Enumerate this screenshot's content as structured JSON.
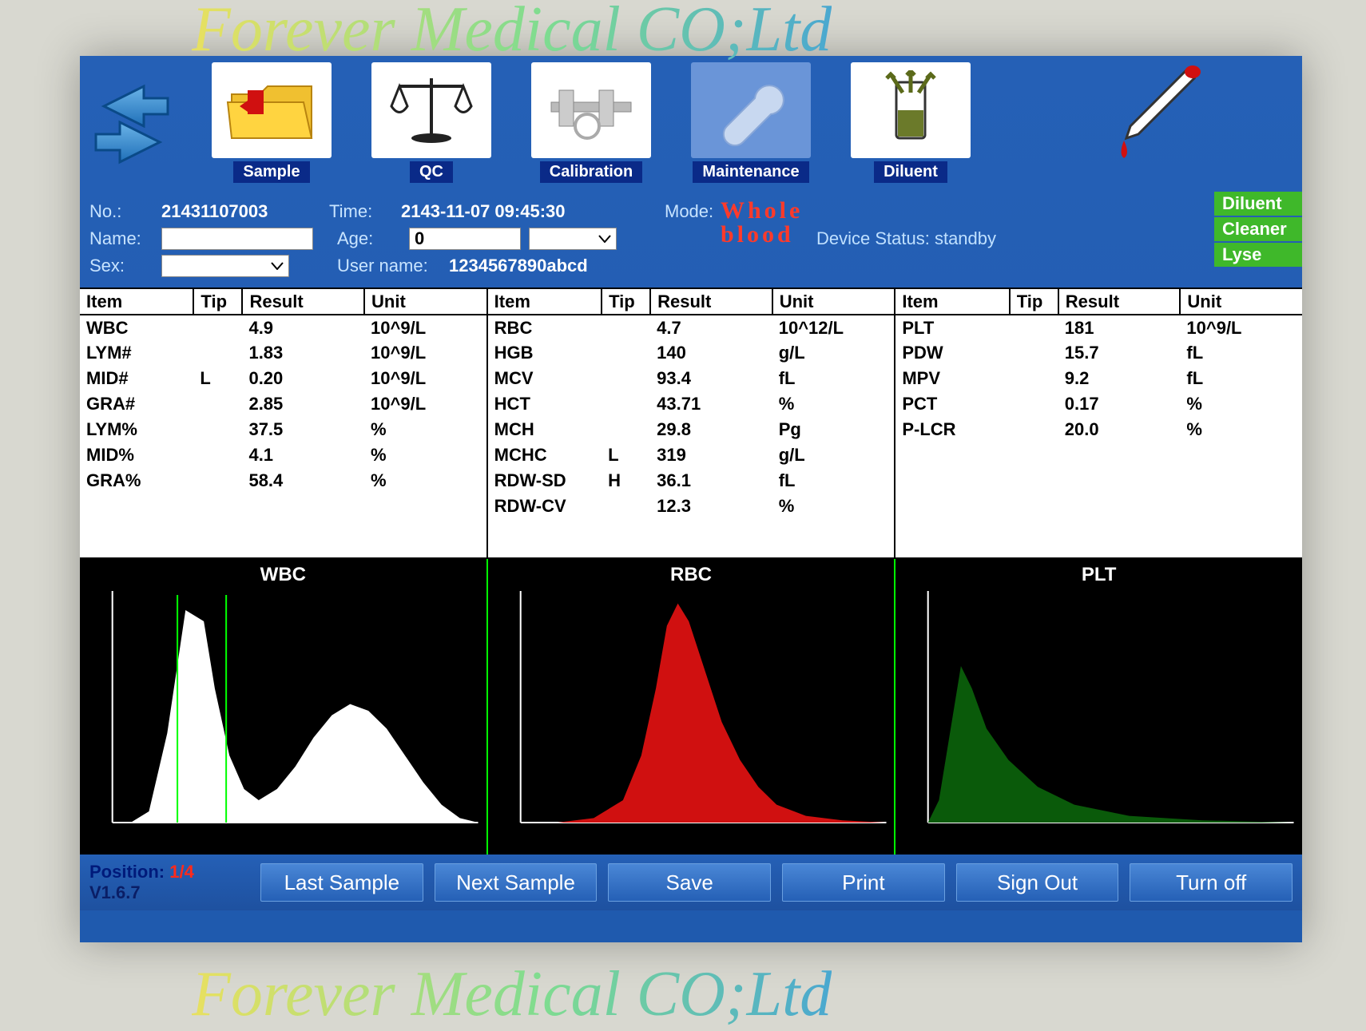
{
  "watermark": "Forever Medical CO;Ltd",
  "toolbar": {
    "items": [
      {
        "label": "Sample",
        "icon": "folder"
      },
      {
        "label": "QC",
        "icon": "scale"
      },
      {
        "label": "Calibration",
        "icon": "caliper"
      },
      {
        "label": "Maintenance",
        "icon": "wrench"
      },
      {
        "label": "Diluent",
        "icon": "tube"
      }
    ]
  },
  "info": {
    "no_label": "No.:",
    "no_value": "21431107003",
    "time_label": "Time:",
    "time_value": "2143-11-07 09:45:30",
    "mode_label": "Mode:",
    "mode_value_line1": "Whole",
    "mode_value_line2": "blood",
    "name_label": "Name:",
    "name_value": "",
    "age_label": "Age:",
    "age_value": "0",
    "sex_label": "Sex:",
    "sex_value": "",
    "user_label": "User name:",
    "user_value": "1234567890abcd",
    "device_status": "Device Status: standby"
  },
  "reagents": [
    "Diluent",
    "Cleaner",
    "Lyse"
  ],
  "columns": [
    "Item",
    "Tip",
    "Result",
    "Unit"
  ],
  "panel1": [
    {
      "item": "WBC",
      "tip": "",
      "result": "4.9",
      "unit": "10^9/L"
    },
    {
      "item": "LYM#",
      "tip": "",
      "result": "1.83",
      "unit": "10^9/L"
    },
    {
      "item": "MID#",
      "tip": "L",
      "result": "0.20",
      "unit": "10^9/L"
    },
    {
      "item": "GRA#",
      "tip": "",
      "result": "2.85",
      "unit": "10^9/L"
    },
    {
      "item": "LYM%",
      "tip": "",
      "result": "37.5",
      "unit": "%"
    },
    {
      "item": "MID%",
      "tip": "",
      "result": "4.1",
      "unit": "%"
    },
    {
      "item": "GRA%",
      "tip": "",
      "result": "58.4",
      "unit": "%"
    }
  ],
  "panel2": [
    {
      "item": "RBC",
      "tip": "",
      "result": "4.7",
      "unit": "10^12/L"
    },
    {
      "item": "HGB",
      "tip": "",
      "result": "140",
      "unit": "g/L"
    },
    {
      "item": "MCV",
      "tip": "",
      "result": "93.4",
      "unit": "fL"
    },
    {
      "item": "HCT",
      "tip": "",
      "result": "43.71",
      "unit": "%"
    },
    {
      "item": "MCH",
      "tip": "",
      "result": "29.8",
      "unit": "Pg"
    },
    {
      "item": "MCHC",
      "tip": "L",
      "result": "319",
      "unit": "g/L"
    },
    {
      "item": "RDW-SD",
      "tip": "H",
      "result": "36.1",
      "unit": "fL"
    },
    {
      "item": "RDW-CV",
      "tip": "",
      "result": "12.3",
      "unit": "%"
    }
  ],
  "panel3": [
    {
      "item": "PLT",
      "tip": "",
      "result": "181",
      "unit": "10^9/L"
    },
    {
      "item": "PDW",
      "tip": "",
      "result": "15.7",
      "unit": "fL"
    },
    {
      "item": "MPV",
      "tip": "",
      "result": "9.2",
      "unit": "fL"
    },
    {
      "item": "PCT",
      "tip": "",
      "result": "0.17",
      "unit": "%"
    },
    {
      "item": "P-LCR",
      "tip": "",
      "result": "20.0",
      "unit": "%"
    }
  ],
  "histograms": {
    "wbc": {
      "title": "WBC",
      "fill": "#ffffff",
      "points": [
        0,
        0,
        5,
        0,
        10,
        5,
        15,
        40,
        20,
        95,
        25,
        90,
        28,
        60,
        32,
        30,
        36,
        15,
        40,
        10,
        45,
        15,
        50,
        25,
        55,
        38,
        60,
        48,
        65,
        53,
        70,
        50,
        75,
        42,
        80,
        30,
        85,
        18,
        90,
        8,
        95,
        2,
        100,
        0
      ]
    },
    "rbc": {
      "title": "RBC",
      "fill": "#d01010",
      "points": [
        0,
        0,
        10,
        0,
        20,
        2,
        28,
        10,
        33,
        30,
        37,
        60,
        40,
        88,
        43,
        98,
        46,
        90,
        50,
        70,
        55,
        45,
        60,
        28,
        65,
        16,
        70,
        8,
        78,
        3,
        88,
        1,
        100,
        0
      ]
    },
    "plt": {
      "title": "PLT",
      "fill": "#0a5a0a",
      "points": [
        0,
        0,
        3,
        10,
        6,
        40,
        9,
        70,
        12,
        60,
        16,
        42,
        22,
        28,
        30,
        16,
        40,
        8,
        55,
        3,
        75,
        1,
        100,
        0
      ]
    }
  },
  "footer": {
    "position_label": "Position:",
    "position_value": "1/4",
    "version": "V1.6.7",
    "buttons": [
      "Last Sample",
      "Next Sample",
      "Save",
      "Print",
      "Sign Out",
      "Turn off"
    ]
  },
  "colors": {
    "screen_bg": "#2560b6",
    "accent_green": "#3fb82a",
    "accent_red": "#ff2a1a"
  }
}
